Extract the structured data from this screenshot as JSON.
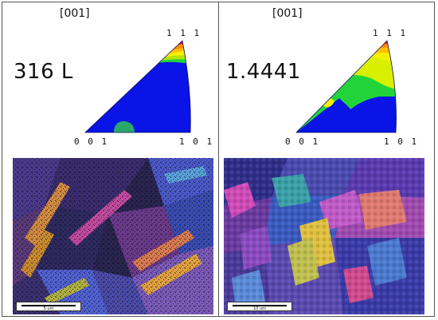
{
  "left": {
    "direction": "[001]",
    "alloy": "316 L",
    "pole_top": "1 1 1",
    "pole_bottom_left": "0 0 1",
    "pole_bottom_right": "1 0 1",
    "scale_text": "5 um"
  },
  "right": {
    "direction": "[001]",
    "alloy": "1.4441",
    "pole_top": "1 1 1",
    "pole_bottom_left": "0 0 1",
    "pole_bottom_right": "1 0 1",
    "scale_text": "10 um"
  },
  "colors": {
    "blue": "#0a14e6",
    "green": "#22d43a",
    "yellow": "#f4f000",
    "orange": "#ff8c00",
    "red": "#f01010",
    "frame": "#555555"
  }
}
